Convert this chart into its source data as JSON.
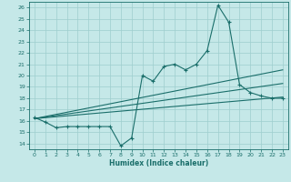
{
  "xlabel": "Humidex (Indice chaleur)",
  "ylabel": "",
  "xlim": [
    -0.5,
    23.5
  ],
  "ylim": [
    13.5,
    26.5
  ],
  "xticks": [
    0,
    1,
    2,
    3,
    4,
    5,
    6,
    7,
    8,
    9,
    10,
    11,
    12,
    13,
    14,
    15,
    16,
    17,
    18,
    19,
    20,
    21,
    22,
    23
  ],
  "yticks": [
    14,
    15,
    16,
    17,
    18,
    19,
    20,
    21,
    22,
    23,
    24,
    25,
    26
  ],
  "background_color": "#c5e8e8",
  "grid_color": "#9ecece",
  "line_color": "#1a6e6a",
  "main_curve_x": [
    0,
    1,
    2,
    3,
    4,
    5,
    6,
    7,
    8,
    9,
    10,
    11,
    12,
    13,
    14,
    15,
    16,
    17,
    18,
    19,
    20,
    21,
    22,
    23
  ],
  "main_curve_y": [
    16.3,
    15.9,
    15.4,
    15.5,
    15.5,
    15.5,
    15.5,
    15.5,
    13.8,
    14.5,
    20.0,
    19.5,
    20.8,
    21.0,
    20.5,
    21.0,
    22.2,
    26.2,
    24.7,
    19.2,
    18.5,
    18.2,
    18.0,
    18.0
  ],
  "trend_line1_x": [
    0,
    23
  ],
  "trend_line1_y": [
    16.2,
    18.1
  ],
  "trend_line2_x": [
    0,
    23
  ],
  "trend_line2_y": [
    16.2,
    19.3
  ],
  "trend_line3_x": [
    0,
    23
  ],
  "trend_line3_y": [
    16.2,
    20.5
  ]
}
